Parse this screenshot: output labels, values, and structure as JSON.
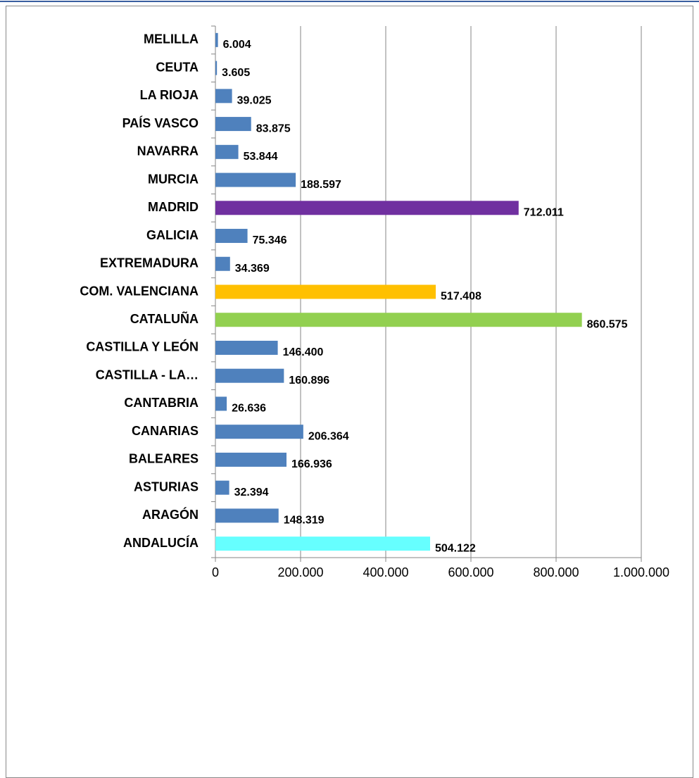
{
  "chart_data": {
    "type": "bar",
    "orientation": "horizontal",
    "categories": [
      "ANDALUCÍA",
      "ARAGÓN",
      "ASTURIAS",
      "BALEARES",
      "CANARIAS",
      "CANTABRIA",
      "CASTILLA - LA…",
      "CASTILLA Y LEÓN",
      "CATALUÑA",
      "COM. VALENCIANA",
      "EXTREMADURA",
      "GALICIA",
      "MADRID",
      "MURCIA",
      "NAVARRA",
      "PAÍS VASCO",
      "LA RIOJA",
      "CEUTA",
      "MELILLA"
    ],
    "values": [
      504122,
      148319,
      32394,
      166936,
      206364,
      26636,
      160896,
      146400,
      860575,
      517408,
      34369,
      75346,
      712011,
      188597,
      53844,
      83875,
      39025,
      3605,
      6004
    ],
    "value_labels": [
      "504.122",
      "148.319",
      "32.394",
      "166.936",
      "206.364",
      "26.636",
      "160.896",
      "146.400",
      "860.575",
      "517.408",
      "34.369",
      "75.346",
      "712.011",
      "188.597",
      "53.844",
      "83.875",
      "39.025",
      "3.605",
      "6.004"
    ],
    "colors": [
      "#66ffff",
      "#4f81bd",
      "#4f81bd",
      "#4f81bd",
      "#4f81bd",
      "#4f81bd",
      "#4f81bd",
      "#4f81bd",
      "#92d050",
      "#ffc000",
      "#4f81bd",
      "#4f81bd",
      "#7030a0",
      "#4f81bd",
      "#4f81bd",
      "#4f81bd",
      "#4f81bd",
      "#4f81bd",
      "#4f81bd"
    ],
    "xlim": [
      0,
      1000000
    ],
    "xticks": [
      0,
      {
        "value": 200000,
        "label": "200.000"
      },
      {
        "value": 400000,
        "label": "400.000"
      },
      {
        "value": 600000,
        "label": "600.000"
      },
      {
        "value": 800000,
        "label": "800.000"
      },
      {
        "value": 1000000,
        "label": "1.000.000"
      }
    ],
    "grid": true
  }
}
